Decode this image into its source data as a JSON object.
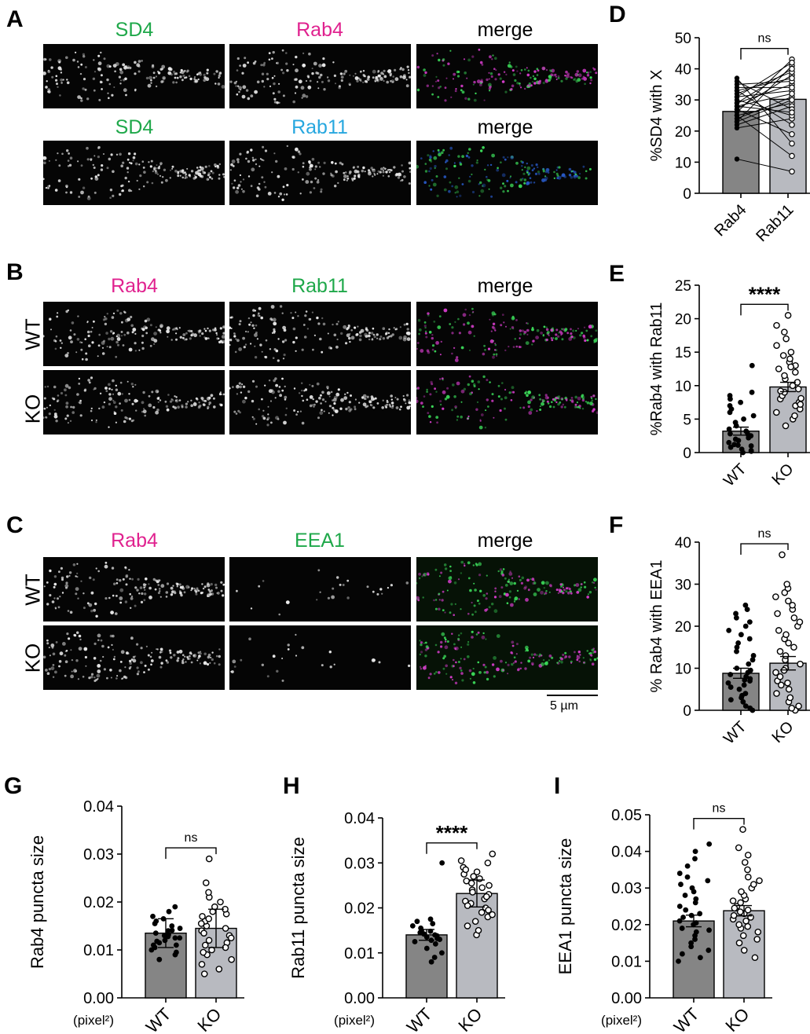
{
  "colors": {
    "green": "#1fa84a",
    "magenta": "#e0228f",
    "cyan": "#27a7df",
    "bar_dark": "#858585",
    "bar_light": "#b8bac0"
  },
  "panelA": {
    "letter": "A",
    "row1": [
      "SD4",
      "Rab4",
      "merge"
    ],
    "row2": [
      "SD4",
      "Rab11",
      "merge"
    ]
  },
  "panelB": {
    "letter": "B",
    "channels": [
      "Rab4",
      "Rab11",
      "merge"
    ],
    "rows": [
      "WT",
      "KO"
    ]
  },
  "panelC": {
    "letter": "C",
    "channels": [
      "Rab4",
      "EEA1",
      "merge"
    ],
    "rows": [
      "WT",
      "KO"
    ],
    "scale_bar": "5 µm"
  },
  "chart_data": [
    {
      "panel": "D",
      "type": "bar",
      "paired": true,
      "categories": [
        "Rab4",
        "Rab11"
      ],
      "values": [
        26.3,
        30.2
      ],
      "ylabel": "%SD4 with X",
      "ylim": [
        0,
        50
      ],
      "yticks": [
        "0",
        "10",
        "20",
        "30",
        "40",
        "50"
      ],
      "significance": "ns",
      "pairs": [
        [
          11,
          7
        ],
        [
          21,
          24
        ],
        [
          23,
          41
        ],
        [
          25,
          29
        ],
        [
          27,
          38
        ],
        [
          29,
          35
        ],
        [
          31,
          33
        ],
        [
          33,
          22
        ],
        [
          35,
          36
        ],
        [
          37,
          16
        ],
        [
          22,
          28
        ],
        [
          24,
          31
        ],
        [
          26,
          43
        ],
        [
          28,
          32
        ],
        [
          30,
          25
        ],
        [
          32,
          39
        ],
        [
          34,
          34
        ],
        [
          36,
          27
        ],
        [
          27,
          19
        ],
        [
          29,
          40
        ],
        [
          25,
          12
        ],
        [
          31,
          42
        ],
        [
          23,
          30
        ],
        [
          33,
          37
        ],
        [
          28,
          26
        ]
      ]
    },
    {
      "panel": "E",
      "type": "bar",
      "categories": [
        "WT",
        "KO"
      ],
      "values": [
        3.2,
        9.8
      ],
      "errors": [
        0.6,
        0.7
      ],
      "ylabel": "%Rab4 with Rab11",
      "ylim": [
        0,
        25
      ],
      "yticks": [
        "0",
        "5",
        "10",
        "15",
        "20",
        "25"
      ],
      "significance": "****",
      "points": [
        [
          0,
          0.2,
          0.5,
          0.8,
          1,
          1.2,
          1.5,
          1.8,
          2,
          2.2,
          2.5,
          2.8,
          3,
          3.2,
          3.5,
          4,
          4.5,
          5,
          5.5,
          6,
          6.5,
          7,
          7.5,
          8,
          8.5,
          9,
          0.3,
          1.1,
          2.6,
          13
        ],
        [
          4,
          5,
          5.5,
          6,
          6.5,
          7,
          7.5,
          8,
          8.5,
          9,
          9.5,
          10,
          10.5,
          11,
          11.5,
          12,
          12.5,
          13,
          13.5,
          14,
          14.5,
          15,
          16,
          17,
          18,
          19,
          20.5,
          9.2,
          8.1,
          7.2,
          12.8
        ]
      ]
    },
    {
      "panel": "F",
      "type": "bar",
      "categories": [
        "WT",
        "KO"
      ],
      "values": [
        8.8,
        11.2
      ],
      "errors": [
        1.2,
        1.6
      ],
      "ylabel": "% Rab4 with EEA1",
      "ylim": [
        0,
        40
      ],
      "yticks": [
        "0",
        "10",
        "20",
        "30",
        "40"
      ],
      "significance": "ns",
      "points": [
        [
          0,
          0.5,
          1,
          2,
          3,
          3.5,
          4,
          5,
          5.5,
          6,
          6.5,
          7,
          7.5,
          8,
          8.5,
          9,
          9.5,
          10,
          11,
          12,
          13,
          14,
          15,
          16,
          17,
          18,
          19,
          20,
          21,
          22,
          23,
          24,
          25,
          2.5,
          7.2
        ],
        [
          0,
          0.5,
          1,
          2,
          3,
          4,
          5,
          6,
          7,
          8,
          9,
          10,
          11,
          12,
          13,
          14,
          15,
          16,
          17,
          18,
          19,
          20,
          21,
          22,
          23,
          24,
          25,
          26,
          27,
          28,
          29,
          30,
          37,
          6.5,
          9.5
        ]
      ]
    },
    {
      "panel": "G",
      "type": "bar",
      "categories": [
        "WT",
        "KO"
      ],
      "values": [
        0.0135,
        0.0145
      ],
      "errors": [
        0.003,
        0.004
      ],
      "ylabel": "Rab4 puncta size",
      "unit": "(pixel²)",
      "ylim": [
        0,
        0.04
      ],
      "yticks": [
        "0.00",
        "0.01",
        "0.02",
        "0.03",
        "0.04"
      ],
      "significance": "ns",
      "points": [
        [
          0.008,
          0.009,
          0.0095,
          0.01,
          0.0105,
          0.011,
          0.0115,
          0.012,
          0.0125,
          0.013,
          0.0135,
          0.014,
          0.0145,
          0.015,
          0.0155,
          0.016,
          0.0165,
          0.017,
          0.018,
          0.019,
          0.0125,
          0.0132,
          0.0118,
          0.0141,
          0.0128,
          0.011
        ],
        [
          0.005,
          0.006,
          0.007,
          0.008,
          0.009,
          0.01,
          0.011,
          0.012,
          0.013,
          0.014,
          0.015,
          0.016,
          0.017,
          0.018,
          0.019,
          0.02,
          0.021,
          0.022,
          0.024,
          0.029,
          0.0125,
          0.0135,
          0.0145,
          0.0155,
          0.0115,
          0.0165,
          0.0175,
          0.0105,
          0.0095,
          0.0185
        ]
      ]
    },
    {
      "panel": "H",
      "type": "bar",
      "categories": [
        "WT",
        "KO"
      ],
      "values": [
        0.014,
        0.0232
      ],
      "errors": [
        0.0012,
        0.003
      ],
      "ylabel": "Rab11 puncta size",
      "unit": "(pixel²)",
      "ylim": [
        0,
        0.04
      ],
      "yticks": [
        "0.00",
        "0.01",
        "0.02",
        "0.03",
        "0.04"
      ],
      "significance": "****",
      "points": [
        [
          0.008,
          0.009,
          0.01,
          0.011,
          0.012,
          0.0125,
          0.013,
          0.0135,
          0.014,
          0.0145,
          0.015,
          0.0155,
          0.016,
          0.0165,
          0.017,
          0.0175,
          0.03,
          0.0138,
          0.0142,
          0.0128,
          0.0148,
          0.0132
        ],
        [
          0.014,
          0.015,
          0.016,
          0.017,
          0.018,
          0.019,
          0.02,
          0.021,
          0.022,
          0.023,
          0.024,
          0.025,
          0.026,
          0.027,
          0.028,
          0.029,
          0.03,
          0.0305,
          0.032,
          0.0215,
          0.0225,
          0.0235,
          0.0245,
          0.0255,
          0.0265,
          0.0195,
          0.0185,
          0.0275,
          0.0285,
          0.0205
        ]
      ]
    },
    {
      "panel": "I",
      "type": "bar",
      "categories": [
        "WT",
        "KO"
      ],
      "values": [
        0.021,
        0.0238
      ],
      "errors": [
        0.0016,
        0.0014
      ],
      "ylabel": "EEA1 puncta size",
      "unit": "(pixel²)",
      "ylim": [
        0,
        0.05
      ],
      "yticks": [
        "0.00",
        "0.01",
        "0.02",
        "0.03",
        "0.04",
        "0.05"
      ],
      "significance": "ns",
      "points": [
        [
          0.01,
          0.011,
          0.012,
          0.013,
          0.014,
          0.015,
          0.016,
          0.017,
          0.018,
          0.019,
          0.02,
          0.021,
          0.022,
          0.023,
          0.024,
          0.025,
          0.026,
          0.027,
          0.028,
          0.029,
          0.03,
          0.031,
          0.032,
          0.033,
          0.034,
          0.036,
          0.038,
          0.04,
          0.042,
          0.0205,
          0.0185,
          0.0225
        ],
        [
          0.011,
          0.013,
          0.015,
          0.016,
          0.017,
          0.018,
          0.019,
          0.02,
          0.021,
          0.022,
          0.023,
          0.024,
          0.025,
          0.026,
          0.027,
          0.028,
          0.029,
          0.03,
          0.031,
          0.032,
          0.033,
          0.035,
          0.037,
          0.039,
          0.041,
          0.046,
          0.0215,
          0.0235,
          0.0245,
          0.0195,
          0.0225,
          0.0265
        ]
      ]
    }
  ]
}
